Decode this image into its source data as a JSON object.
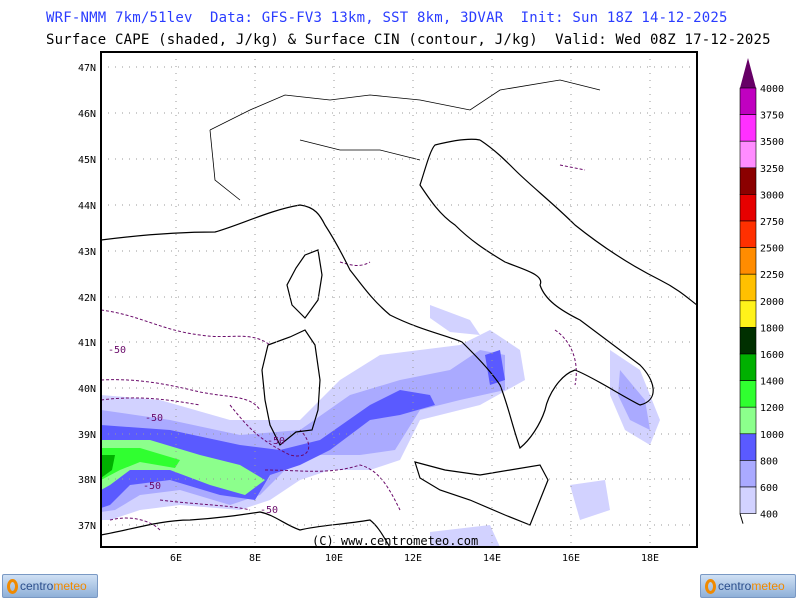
{
  "header": {
    "line1": "WRF-NMM 7km/51lev  Data: GFS-FV3 13km, SST 8km, 3DVAR  Init: Sun 18Z 14-12-2025",
    "line2": "Surface CAPE (shaded, J/kg) & Surface CIN (contour, J/kg)  Valid: Wed 08Z 17-12-2025"
  },
  "map": {
    "lat_labels": [
      "47N",
      "46N",
      "45N",
      "44N",
      "43N",
      "42N",
      "41N",
      "40N",
      "39N",
      "38N",
      "37N"
    ],
    "lon_labels": [
      "6E",
      "8E",
      "10E",
      "12E",
      "14E",
      "16E",
      "18E"
    ],
    "contour_labels": [
      "-50",
      "-50",
      "-50",
      "-50",
      "-50"
    ],
    "copyright": "(C) www.centrometeo.com",
    "colors": {
      "coast": "#000000",
      "cin_contour": "#6a0a6a",
      "grid": "#999999"
    }
  },
  "colorbar": {
    "levels": [
      "4000",
      "3750",
      "3500",
      "3250",
      "3000",
      "2750",
      "2500",
      "2250",
      "2000",
      "1800",
      "1600",
      "1400",
      "1200",
      "1000",
      "800",
      "600",
      "400"
    ],
    "colors": [
      "#c000c0",
      "#ff30ff",
      "#ff8cff",
      "#8b0000",
      "#e60000",
      "#ff3000",
      "#ff8c00",
      "#ffc000",
      "#fff21a",
      "#003000",
      "#00b000",
      "#30ff30",
      "#8cff8c",
      "#5a5aff",
      "#aaaaff",
      "#d2d2ff"
    ],
    "top_arrow_color": "#660066"
  },
  "logos": {
    "left": {
      "part1": "centro",
      "part2": "meteo"
    },
    "right": {
      "part1": "centro",
      "part2": "meteo"
    }
  }
}
